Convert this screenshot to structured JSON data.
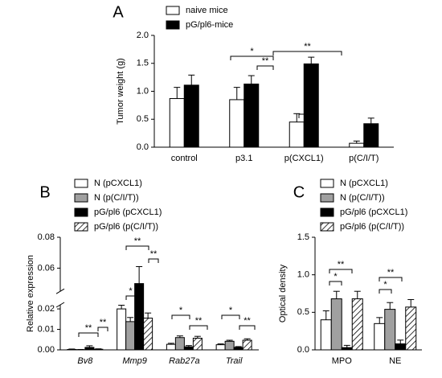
{
  "chart_data": [
    {
      "type": "bar",
      "panel_label": "A",
      "ylabel": "Tumor weight (g)",
      "categories": [
        "control",
        "p3.1",
        "p(CXCL1)",
        "p(C/I/T)"
      ],
      "series": [
        {
          "name": "naive mice",
          "color": "#ffffff",
          "values": [
            0.87,
            0.85,
            0.45,
            0.07
          ],
          "errors": [
            0.2,
            0.22,
            0.15,
            0.04
          ]
        },
        {
          "name": "pG/pl6-mice",
          "color": "#000000",
          "values": [
            1.11,
            1.13,
            1.49,
            0.42
          ],
          "errors": [
            0.18,
            0.15,
            0.12,
            0.1
          ]
        }
      ],
      "ylim": [
        0,
        2.0
      ],
      "yticks": [
        {
          "value": 0,
          "label": "0.0"
        },
        0.5,
        {
          "value": 1,
          "label": "1.0"
        },
        1.5,
        {
          "value": 2,
          "label": "2.0"
        }
      ],
      "annotations": [
        "*",
        "**",
        "**",
        "**"
      ]
    },
    {
      "type": "bar",
      "panel_label": "B",
      "ylabel": "Relative expression",
      "categories": [
        "Bv8",
        "Mmp9",
        "Rab27a",
        "Trail"
      ],
      "italic_categories": true,
      "series": [
        {
          "name": "N (pCXCL1)",
          "color": "#ffffff",
          "values": [
            0.0002,
            0.02,
            0.0027,
            0.0025
          ],
          "errors": [
            0.0002,
            0.0018,
            0.0005,
            0.0004
          ]
        },
        {
          "name": "N (p(C/I/T))",
          "color": "#a0a0a0",
          "values": [
            0.0001,
            0.0138,
            0.006,
            0.0042
          ],
          "errors": [
            0.0001,
            0.002,
            0.0008,
            0.0005
          ]
        },
        {
          "name": "pG/pl6 (pCXCL1)",
          "color": "#000000",
          "values": [
            0.0012,
            0.05,
            0.0015,
            0.0012
          ],
          "errors": [
            0.0008,
            0.011,
            0.0006,
            0.0004
          ]
        },
        {
          "name": "pG/pl6 (p(C/I/T))",
          "color": "#ffffff",
          "pattern": "hatch",
          "values": [
            0.0003,
            0.0155,
            0.0057,
            0.0047
          ],
          "errors": [
            0.0002,
            0.0025,
            0.0009,
            0.0007
          ]
        }
      ],
      "ylim": [
        0,
        0.08
      ],
      "ybreak": [
        0.022,
        0.045
      ],
      "yticks": [
        {
          "value": 0,
          "label": "0.00"
        },
        0.01,
        0.02,
        0.06,
        0.08
      ],
      "annotations": [
        "**",
        "**",
        "*",
        "**",
        "**",
        "*",
        "**",
        "*",
        "**"
      ]
    },
    {
      "type": "bar",
      "panel_label": "C",
      "ylabel": "Optical density",
      "categories": [
        "MPO",
        "NE"
      ],
      "series": [
        {
          "name": "N (pCXCL1)",
          "color": "#ffffff",
          "values": [
            0.4,
            0.35
          ],
          "errors": [
            0.12,
            0.08
          ]
        },
        {
          "name": "N (p(C/I/T))",
          "color": "#a0a0a0",
          "values": [
            0.68,
            0.54
          ],
          "errors": [
            0.1,
            0.09
          ]
        },
        {
          "name": "pG/pl6 (pCXCL1)",
          "color": "#000000",
          "values": [
            0.03,
            0.08
          ],
          "errors": [
            0.03,
            0.05
          ]
        },
        {
          "name": "pG/pl6 (p(C/I/T))",
          "color": "#ffffff",
          "pattern": "hatch",
          "values": [
            0.68,
            0.57
          ],
          "errors": [
            0.1,
            0.1
          ]
        }
      ],
      "ylim": [
        0,
        1.5
      ],
      "yticks": [
        {
          "value": 0,
          "label": "0.0"
        },
        0.5,
        {
          "value": 1,
          "label": "1.0"
        },
        1.5
      ],
      "annotations": [
        "*",
        "**",
        "*",
        "**"
      ]
    }
  ]
}
